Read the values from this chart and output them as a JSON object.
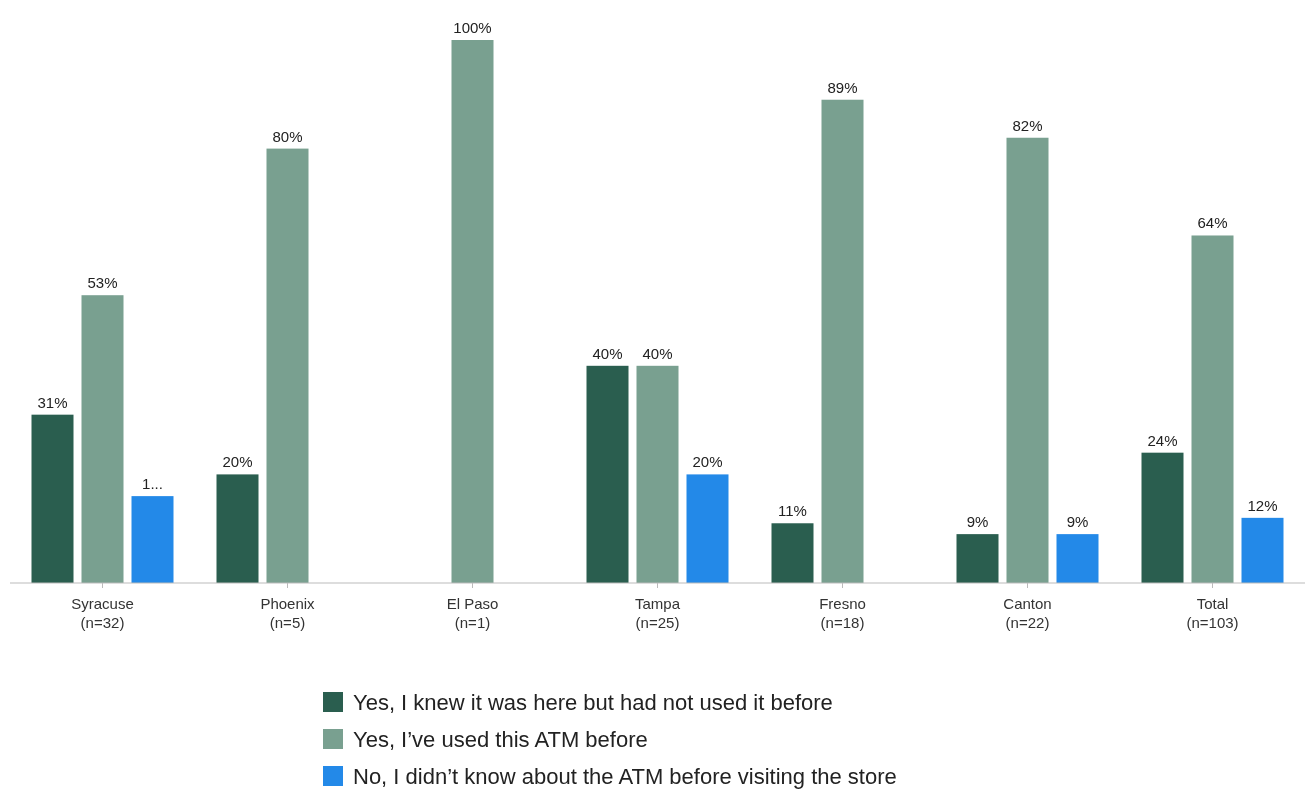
{
  "chart_data": {
    "type": "bar",
    "categories": [
      "Syracuse\n(n=32)",
      "Phoenix\n(n=5)",
      "El Paso\n(n=1)",
      "Tampa\n(n=25)",
      "Fresno\n(n=18)",
      "Canton\n(n=22)",
      "Total\n(n=103)"
    ],
    "series": [
      {
        "name": "Yes, I knew it was here but had not used it before",
        "color": "#2a5e4f",
        "values": [
          31,
          20,
          null,
          40,
          11,
          9,
          24
        ],
        "value_labels": [
          "31%",
          "20%",
          null,
          "40%",
          "11%",
          "9%",
          "24%"
        ]
      },
      {
        "name": "Yes, I’ve used this ATM before",
        "color": "#79a090",
        "values": [
          53,
          80,
          100,
          40,
          89,
          82,
          64
        ],
        "value_labels": [
          "53%",
          "80%",
          "100%",
          "40%",
          "89%",
          "82%",
          "64%"
        ]
      },
      {
        "name": "No, I didn’t know about the ATM before visiting the store",
        "color": "#2389e8",
        "values": [
          16,
          null,
          null,
          20,
          null,
          9,
          12
        ],
        "value_labels": [
          "1...",
          null,
          null,
          "20%",
          null,
          "9%",
          "12%"
        ]
      }
    ],
    "legend": "bottom"
  }
}
